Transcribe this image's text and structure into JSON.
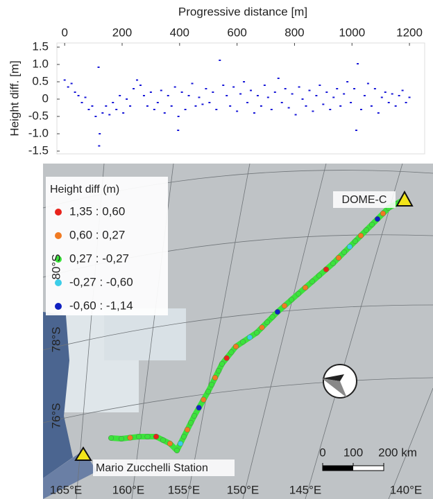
{
  "chart_data": [
    {
      "type": "scatter",
      "x_label": "Progressive distance [m]",
      "y_label": "Height diff. [m]",
      "color": "#1515d8",
      "xlim": [
        -27,
        1253
      ],
      "ylim": [
        -1.58,
        1.62
      ],
      "xticks": [
        0,
        200,
        400,
        600,
        800,
        1000,
        1200
      ],
      "yticks": [
        1.5,
        {
          "value": 1,
          "label": "1.0"
        },
        0.5,
        0,
        -0.5,
        {
          "value": -1,
          "label": "-1.0"
        },
        -1.5
      ],
      "x": [
        0,
        12,
        24,
        36,
        48,
        60,
        72,
        84,
        96,
        108,
        118,
        120,
        122,
        132,
        144,
        156,
        168,
        180,
        192,
        204,
        216,
        228,
        240,
        252,
        264,
        276,
        288,
        300,
        312,
        324,
        336,
        348,
        360,
        372,
        384,
        395,
        396,
        408,
        420,
        432,
        444,
        456,
        468,
        480,
        492,
        504,
        516,
        528,
        540,
        552,
        564,
        576,
        588,
        600,
        612,
        624,
        636,
        648,
        660,
        672,
        684,
        696,
        708,
        720,
        732,
        744,
        756,
        768,
        780,
        792,
        804,
        816,
        828,
        840,
        852,
        864,
        876,
        888,
        900,
        912,
        924,
        936,
        948,
        960,
        972,
        984,
        996,
        1008,
        1015,
        1020,
        1032,
        1044,
        1056,
        1068,
        1080,
        1092,
        1104,
        1116,
        1128,
        1140,
        1152,
        1164,
        1176,
        1188,
        1200
      ],
      "values": [
        0.55,
        0.35,
        0.45,
        0.2,
        0.1,
        -0.1,
        0.05,
        -0.3,
        -0.2,
        -0.5,
        0.92,
        -1.35,
        -1.0,
        -0.4,
        -0.2,
        -0.45,
        -0.1,
        -0.3,
        0.1,
        -0.4,
        0,
        -0.2,
        0.3,
        0.55,
        0.4,
        0.1,
        -0.2,
        0.2,
        -0.3,
        -0.1,
        0.25,
        -0.4,
        0.1,
        -0.2,
        0.35,
        -0.9,
        -0.5,
        0.2,
        -0.3,
        0.1,
        0.45,
        -0.2,
        0.05,
        -0.15,
        0.3,
        -0.1,
        0.2,
        -0.3,
        1.12,
        0.4,
        0.1,
        -0.2,
        0.35,
        -0.35,
        0.15,
        0.5,
        -0.1,
        0.25,
        -0.4,
        0.1,
        -0.2,
        0.4,
        0.05,
        -0.3,
        0.2,
        0.6,
        -0.1,
        0.3,
        -0.25,
        0.15,
        -0.45,
        0.35,
        0,
        -0.2,
        0.25,
        -0.35,
        0.1,
        0.4,
        -0.15,
        0.2,
        -0.3,
        0.05,
        0.3,
        -0.2,
        0.15,
        0.5,
        -0.1,
        0.3,
        -0.9,
        1.02,
        -0.3,
        0.1,
        0.45,
        -0.2,
        0.3,
        -0.4,
        0.05,
        0.2,
        -0.1,
        0.15,
        -0.2,
        0.1,
        0.25,
        -0.1,
        0.05
      ]
    },
    {
      "type": "map",
      "legend_title": "Height diff (m)",
      "legend_entries": [
        {
          "name": "1,35 : 0,60",
          "color": "#e8231c"
        },
        {
          "name": "0,60 : 0,27",
          "color": "#f07a22"
        },
        {
          "name": "0,27 : -0,27",
          "color": "#3be33b"
        },
        {
          "name": "-0,27 : -0,60",
          "color": "#3ccde8"
        },
        {
          "name": "-0,60 : -1,14",
          "color": "#1020c0"
        }
      ],
      "lat_labels": [
        "80°S",
        "78°S",
        "76°S"
      ],
      "lon_labels": [
        "165°E",
        "160°E",
        "155°E",
        "150°E",
        "145°E",
        "140°E"
      ],
      "stations": [
        "DOME-C",
        "Mario Zucchelli Station"
      ],
      "scale_ticks": [
        0,
        100,
        {
          "value": 200,
          "label": "200 km"
        }
      ]
    }
  ]
}
